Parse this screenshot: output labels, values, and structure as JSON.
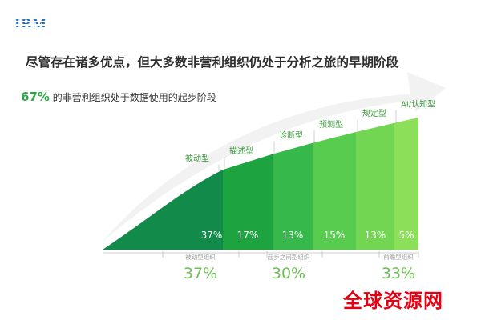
{
  "brand": {
    "logo_text": "IBM"
  },
  "title": "尽管存在诸多优点，但大多数非营利组织仍处于分析之旅的早期阶段",
  "subtitle": {
    "percent": "67%",
    "text": " 的非营利组织处于数据使用的起步阶段"
  },
  "colors": {
    "bars": [
      "#128a4a",
      "#1ea341",
      "#36b94a",
      "#58cc4e",
      "#72d652",
      "#8cdf58"
    ],
    "labels": "#3c9a3c",
    "group_pct": "#6fbf58",
    "arrow": "#f1f2f1"
  },
  "chart_data": {
    "type": "bar",
    "categories": [
      "被动型",
      "描述型",
      "诊断型",
      "预测型",
      "规定型",
      "AI/认知型"
    ],
    "values": [
      37,
      17,
      13,
      15,
      13,
      5
    ],
    "value_labels": [
      "37%",
      "17%",
      "13%",
      "15%",
      "13%",
      "5%"
    ],
    "groups": [
      {
        "label": "被动型组织",
        "value": 37,
        "value_label": "37%"
      },
      {
        "label": "起步之间型组织",
        "value": 30,
        "value_label": "30%"
      },
      {
        "label": "前瞻型组织",
        "value": 33,
        "value_label": "33%"
      }
    ]
  },
  "watermark": "全球资源网"
}
